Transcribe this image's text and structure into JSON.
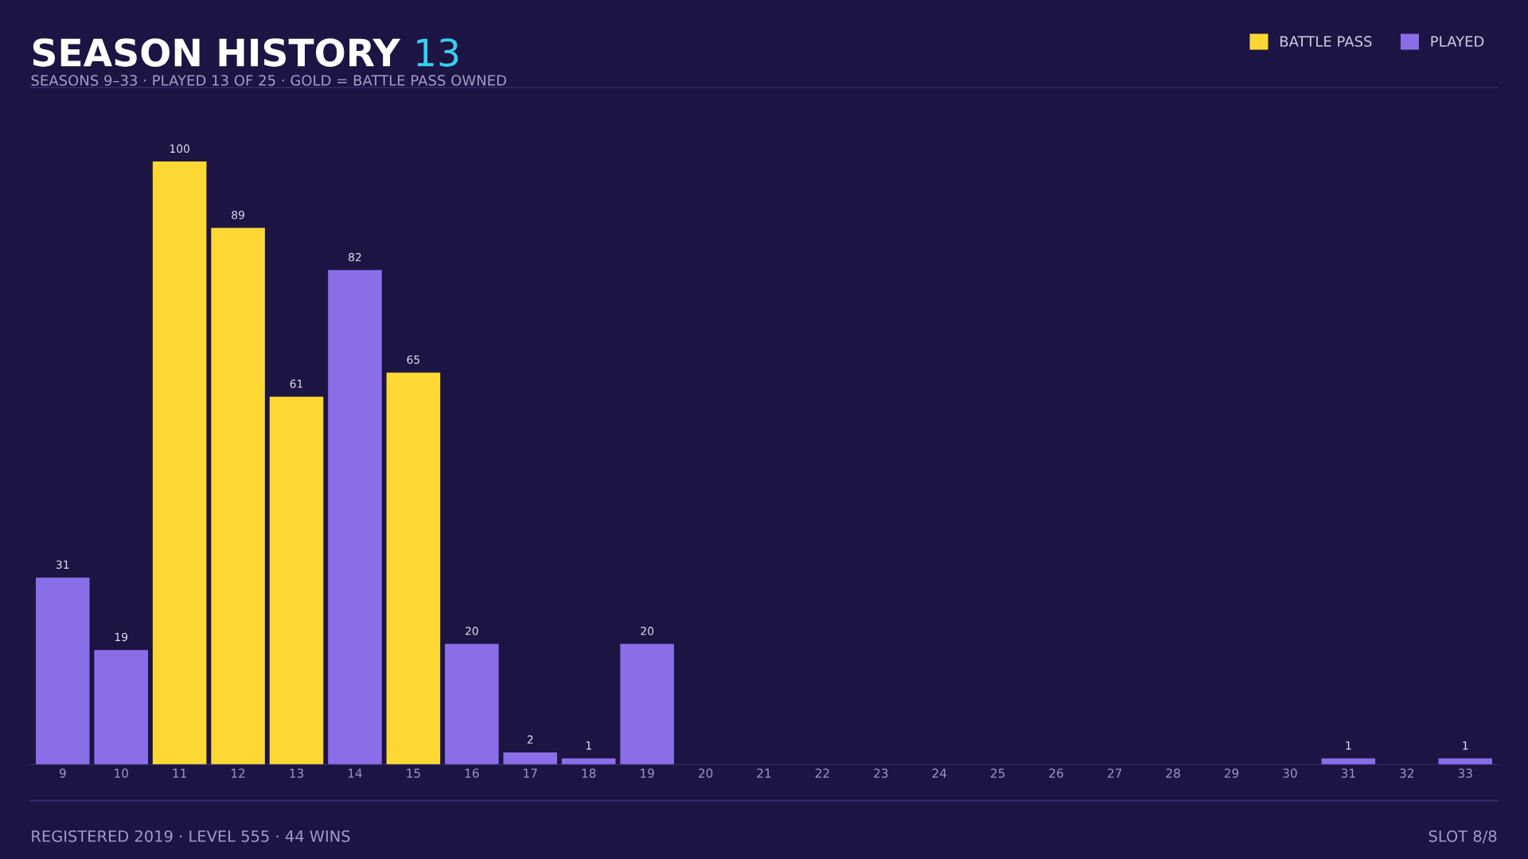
{
  "chart_data": {
    "type": "bar",
    "title": "SEASON HISTORY",
    "subtitle": "SEASONS 9–33 · PLAYED 13 OF 25 · GOLD = BATTLE PASS OWNED",
    "categories": [
      "9",
      "10",
      "11",
      "12",
      "13",
      "14",
      "15",
      "16",
      "17",
      "18",
      "19",
      "20",
      "21",
      "22",
      "23",
      "24",
      "25",
      "26",
      "27",
      "28",
      "29",
      "30",
      "31",
      "32",
      "33"
    ],
    "series": [
      {
        "name": "BATTLE PASS",
        "color": "#fdd835",
        "values": [
          null,
          null,
          100,
          89,
          61,
          null,
          65,
          null,
          null,
          null,
          null,
          null,
          null,
          null,
          null,
          null,
          null,
          null,
          null,
          null,
          null,
          null,
          null,
          null,
          null
        ],
        "value_labels": [
          null,
          null,
          "100",
          "89",
          "61",
          null,
          "65",
          null,
          null,
          null,
          null,
          null,
          null,
          null,
          null,
          null,
          null,
          null,
          null,
          null,
          null,
          null,
          null,
          null,
          null
        ]
      },
      {
        "name": "PLAYED",
        "color": "#8a6ee8",
        "values": [
          31,
          19,
          null,
          null,
          null,
          82,
          null,
          20,
          2,
          1,
          20,
          0,
          0,
          0,
          0,
          0,
          0,
          0,
          0,
          0,
          0,
          0,
          1,
          0,
          1
        ],
        "value_labels": [
          "31",
          "19",
          null,
          null,
          null,
          "82",
          null,
          "20",
          "2",
          "1",
          "20",
          null,
          null,
          null,
          null,
          null,
          null,
          null,
          null,
          null,
          null,
          null,
          "1",
          null,
          "1"
        ]
      }
    ],
    "annotations": [
      "13",
      "REGISTERED 2019 · LEVEL 555 · 44 WINS",
      "SLOT 8/8"
    ],
    "legend": "top right",
    "tick_labels": "x",
    "grid": false
  }
}
